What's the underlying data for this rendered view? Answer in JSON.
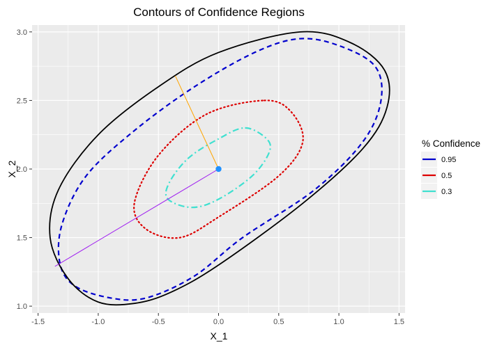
{
  "chart_data": {
    "type": "line",
    "title": "Contours of Confidence Regions",
    "xlabel": "X_1",
    "ylabel": "X_2",
    "xlim": [
      -1.55,
      1.55
    ],
    "ylim": [
      0.95,
      3.05
    ],
    "xticks": [
      -1.5,
      -1.0,
      -0.5,
      0.0,
      0.5,
      1.0,
      1.5
    ],
    "xtick_labels": [
      "-1.5",
      "-1.0",
      "-0.5",
      "0.0",
      "0.5",
      "1.0",
      "1.5"
    ],
    "yticks": [
      1.0,
      1.5,
      2.0,
      2.5,
      3.0
    ],
    "ytick_labels": [
      "1.0",
      "1.5",
      "2.0",
      "2.5",
      "3.0"
    ],
    "grid": true,
    "background": "#ebebeb",
    "legend": {
      "title": "% Confidence",
      "placement": "right",
      "entries": [
        {
          "label": "0.95",
          "color": "#0000cd"
        },
        {
          "label": "0.5",
          "color": "#dd0000"
        },
        {
          "label": "0.3",
          "color": "#40e0d0"
        }
      ]
    },
    "series": [
      {
        "name": "0.95",
        "style": "dashed",
        "color": "#0000cd",
        "x": [
          0.67,
          1.0,
          1.3,
          1.35,
          1.2,
          0.8,
          0.2,
          -0.2,
          -0.6,
          -0.9,
          -1.2,
          -1.32,
          -1.3,
          -1.1,
          -0.7,
          -0.2,
          0.3,
          0.67
        ],
        "y": [
          2.95,
          2.9,
          2.75,
          2.5,
          2.2,
          1.85,
          1.5,
          1.22,
          1.06,
          1.06,
          1.15,
          1.32,
          1.6,
          1.95,
          2.28,
          2.6,
          2.85,
          2.95
        ]
      },
      {
        "name": "0.5",
        "style": "dotted",
        "color": "#dd0000",
        "x": [
          0.38,
          0.6,
          0.7,
          0.5,
          0.0,
          -0.32,
          -0.6,
          -0.7,
          -0.5,
          -0.1,
          0.38
        ],
        "y": [
          2.5,
          2.42,
          2.2,
          1.95,
          1.65,
          1.5,
          1.56,
          1.75,
          2.1,
          2.4,
          2.5
        ]
      },
      {
        "name": "0.3",
        "style": "dotdash",
        "color": "#40e0d0",
        "x": [
          0.22,
          0.4,
          0.42,
          0.28,
          0.0,
          -0.22,
          -0.42,
          -0.41,
          -0.25,
          0.0,
          0.22
        ],
        "y": [
          2.3,
          2.22,
          2.12,
          1.95,
          1.78,
          1.72,
          1.78,
          1.9,
          2.08,
          2.22,
          2.3
        ]
      },
      {
        "name": "",
        "style": "solid",
        "color": "#000000",
        "x": [
          0.68,
          1.1,
          1.38,
          1.4,
          1.2,
          0.7,
          0.0,
          -0.4,
          -0.7,
          -1.0,
          -1.25,
          -1.4,
          -1.33,
          -1.0,
          -0.5,
          0.0,
          0.68
        ],
        "y": [
          3.0,
          2.92,
          2.72,
          2.45,
          2.15,
          1.75,
          1.3,
          1.1,
          1.02,
          1.03,
          1.2,
          1.5,
          1.85,
          2.25,
          2.6,
          2.85,
          3.0
        ]
      },
      {
        "name": "",
        "style": "solid",
        "color": "#ffa500",
        "x": [
          0.0,
          -0.36
        ],
        "y": [
          2.0,
          2.68
        ]
      },
      {
        "name": "",
        "style": "solid",
        "color": "#a020f0",
        "x": [
          0.0,
          -1.36
        ],
        "y": [
          2.0,
          1.29
        ]
      }
    ],
    "points": [
      {
        "x": 0.0,
        "y": 2.0,
        "color": "#1e90ff"
      }
    ]
  }
}
